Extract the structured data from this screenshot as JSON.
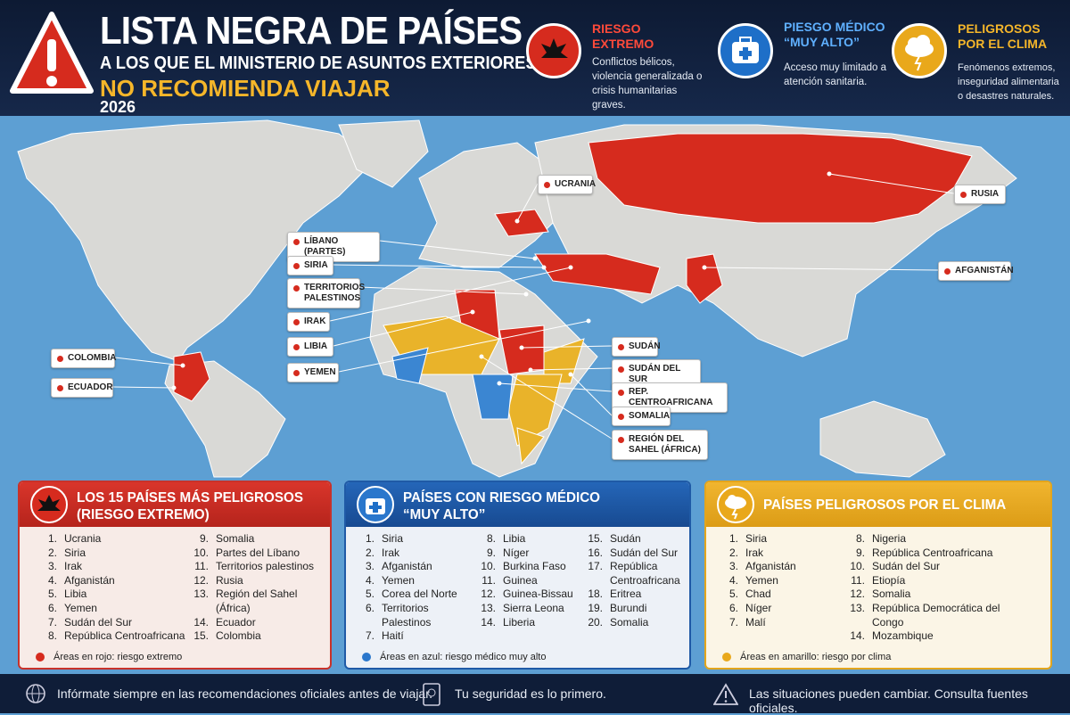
{
  "header": {
    "title": "LISTA NEGRA DE PAÍSES",
    "subtitle": "A LOS QUE EL MINISTERIO DE ASUNTOS EXTERIORES",
    "highlight": "NO RECOMIENDA VIAJAR",
    "year": "2026"
  },
  "legend": [
    {
      "title": "RIESGO EXTREMO",
      "description": "Conflictos bélicos, violencia generalizada o crisis humanitarias graves."
    },
    {
      "title": "PIESGO MÉDICO “MUY ALTO”",
      "description": "Acceso muy limitado a atención sanitaria."
    },
    {
      "title": "PELIGROSOS POR EL CLIMA",
      "description": "Fenómenos extremos, inseguridad alimentaria o desastres naturales."
    }
  ],
  "map": {
    "labels": [
      "UCRANIA",
      "RUSIA",
      "LÍBANO (PARTES)",
      "SIRIA",
      "TERRITORIOS PALESTINOS",
      "IRAK",
      "LIBIA",
      "YEMEN",
      "AFGANISTÁN",
      "COLOMBIA",
      "ECUADOR",
      "SUDÁN",
      "SUDÁN DEL SUR",
      "REP. CENTROAFRICANA",
      "SOMALIA",
      "REGIÓN DEL SAHEL (ÁFRICA)"
    ]
  },
  "panels": [
    {
      "title": "LOS 15 PAÍSES MÁS PELIGROSOS",
      "subtitle": "(RIESGO EXTREMO)",
      "columns": [
        [
          {
            "n": "1.",
            "name": "Ucrania"
          },
          {
            "n": "2.",
            "name": "Siria"
          },
          {
            "n": "3.",
            "name": "Irak"
          },
          {
            "n": "4.",
            "name": "Afganistán"
          },
          {
            "n": "5.",
            "name": "Libia"
          },
          {
            "n": "6.",
            "name": "Yemen"
          },
          {
            "n": "7.",
            "name": "Sudán del Sur"
          },
          {
            "n": "8.",
            "name": "República Centroafricana"
          }
        ],
        [
          {
            "n": "9.",
            "name": "Somalia"
          },
          {
            "n": "10.",
            "name": "Partes del Líbano"
          },
          {
            "n": "11.",
            "name": "Territorios palestinos"
          },
          {
            "n": "12.",
            "name": "Rusia"
          },
          {
            "n": "13.",
            "name": "Región del Sahel (África)"
          },
          {
            "n": "14.",
            "name": "Ecuador"
          },
          {
            "n": "15.",
            "name": "Colombia"
          }
        ]
      ],
      "note": "Áreas en rojo: riesgo extremo"
    },
    {
      "title": "PAÍSES CON RIESGO MÉDICO",
      "subtitle": "“MUY ALTO”",
      "columns": [
        [
          {
            "n": "1.",
            "name": "Siria"
          },
          {
            "n": "2.",
            "name": "Irak"
          },
          {
            "n": "3.",
            "name": "Afganistán"
          },
          {
            "n": "4.",
            "name": "Yemen"
          },
          {
            "n": "5.",
            "name": "Corea del Norte"
          },
          {
            "n": "6.",
            "name": "Territorios Palestinos"
          },
          {
            "n": "7.",
            "name": "Haití"
          }
        ],
        [
          {
            "n": "8.",
            "name": "Libia"
          },
          {
            "n": "9.",
            "name": "Níger"
          },
          {
            "n": "10.",
            "name": "Burkina Faso"
          },
          {
            "n": "11.",
            "name": "Guinea"
          },
          {
            "n": "12.",
            "name": "Guinea-Bissau"
          },
          {
            "n": "13.",
            "name": "Sierra Leona"
          },
          {
            "n": "14.",
            "name": "Liberia"
          }
        ],
        [
          {
            "n": "15.",
            "name": "Sudán"
          },
          {
            "n": "16.",
            "name": "Sudán del Sur"
          },
          {
            "n": "17.",
            "name": "República Centroafricana"
          },
          {
            "n": "18.",
            "name": "Eritrea"
          },
          {
            "n": "19.",
            "name": "Burundi"
          },
          {
            "n": "20.",
            "name": "Somalia"
          }
        ]
      ],
      "note": "Áreas en azul: riesgo médico muy alto"
    },
    {
      "title": "PAÍSES PELIGROSOS POR EL CLIMA",
      "columns": [
        [
          {
            "n": "1.",
            "name": "Siria"
          },
          {
            "n": "2.",
            "name": "Irak"
          },
          {
            "n": "3.",
            "name": "Afganistán"
          },
          {
            "n": "4.",
            "name": "Yemen"
          },
          {
            "n": "5.",
            "name": "Chad"
          },
          {
            "n": "6.",
            "name": "Níger"
          },
          {
            "n": "7.",
            "name": "Malí"
          }
        ],
        [
          {
            "n": "8.",
            "name": "Nigeria"
          },
          {
            "n": "9.",
            "name": "República Centroafricana"
          },
          {
            "n": "10.",
            "name": "Sudán del Sur"
          },
          {
            "n": "11.",
            "name": "Etiopía"
          },
          {
            "n": "12.",
            "name": "Somalia"
          },
          {
            "n": "13.",
            "name": "República Democrática del Congo"
          },
          {
            "n": "14.",
            "name": "Mozambique"
          }
        ]
      ],
      "note": "Áreas en amarillo: riesgo por clima"
    }
  ],
  "footer": [
    "Infórmate siempre en las recomendaciones oficiales antes de viajar.",
    "Tu seguridad es lo primero.",
    "Las situaciones pueden cambiar. Consulta fuentes oficiales."
  ]
}
